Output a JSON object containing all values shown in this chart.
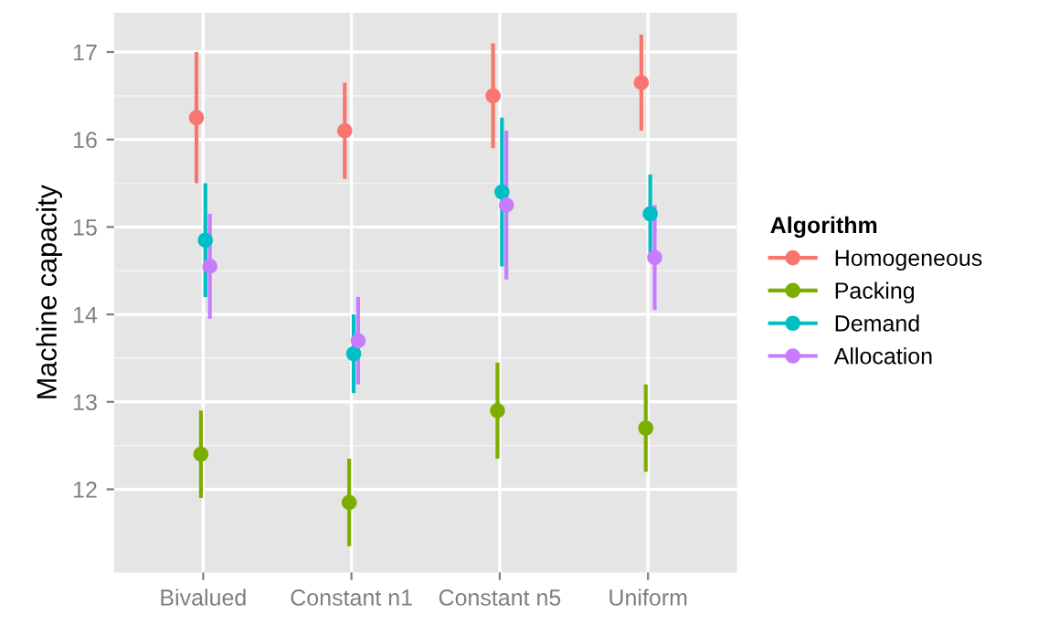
{
  "chart_data": {
    "type": "scatter",
    "ylabel": "Machine capacity",
    "legend_title": "Algorithm",
    "categories": [
      "Bivalued",
      "Constant n1",
      "Constant n5",
      "Uniform"
    ],
    "series": [
      {
        "name": "Homogeneous",
        "color": "#f8766d",
        "values": [
          16.25,
          16.1,
          16.5,
          16.65
        ],
        "errors": [
          [
            15.5,
            17.0
          ],
          [
            15.55,
            16.65
          ],
          [
            15.9,
            17.1
          ],
          [
            16.1,
            17.2
          ]
        ]
      },
      {
        "name": "Packing",
        "color": "#7cae00",
        "values": [
          12.4,
          11.85,
          12.9,
          12.7
        ],
        "errors": [
          [
            11.9,
            12.9
          ],
          [
            11.35,
            12.35
          ],
          [
            12.35,
            13.45
          ],
          [
            12.2,
            13.2
          ]
        ]
      },
      {
        "name": "Demand",
        "color": "#00bfc4",
        "values": [
          14.85,
          13.55,
          15.4,
          15.15
        ],
        "errors": [
          [
            14.2,
            15.5
          ],
          [
            13.1,
            14.0
          ],
          [
            14.55,
            16.25
          ],
          [
            14.7,
            15.6
          ]
        ]
      },
      {
        "name": "Allocation",
        "color": "#c77cff",
        "values": [
          14.55,
          13.7,
          15.25,
          14.65
        ],
        "errors": [
          [
            13.95,
            15.15
          ],
          [
            13.2,
            14.2
          ],
          [
            14.4,
            16.1
          ],
          [
            14.05,
            15.25
          ]
        ]
      }
    ],
    "ylim": [
      11.05,
      17.45
    ],
    "yticks": [
      12,
      13,
      14,
      15,
      16,
      17
    ],
    "grid": true,
    "legend": "right",
    "marker": "circle"
  }
}
